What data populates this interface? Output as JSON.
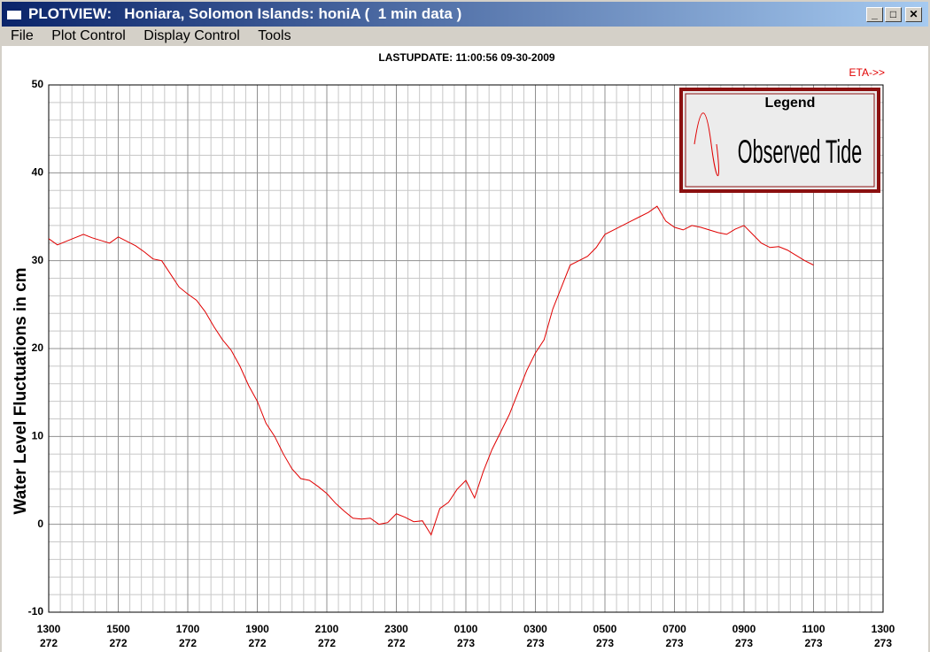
{
  "window": {
    "title": "PLOTVIEW:   Honiara, Solomon Islands: honiA (  1 min data )",
    "menu": [
      "File",
      "Plot Control",
      "Display Control",
      "Tools"
    ]
  },
  "chart_data": {
    "type": "line",
    "title": "LASTUPDATE: 11:00:56  09-30-2009",
    "annotation": "ETA->>",
    "y_label": "Water Level Fluctuations in cm",
    "legend_title": "Legend",
    "legend": "upper right",
    "grid": true,
    "x": [
      13,
      13.25,
      13.5,
      13.75,
      14,
      14.25,
      14.5,
      14.75,
      15,
      15.25,
      15.5,
      15.75,
      16,
      16.25,
      16.5,
      16.75,
      17,
      17.25,
      17.5,
      17.75,
      18,
      18.25,
      18.5,
      18.75,
      19,
      19.25,
      19.5,
      19.75,
      20,
      20.25,
      20.5,
      20.75,
      21,
      21.25,
      21.5,
      21.75,
      22,
      22.25,
      22.5,
      22.75,
      23,
      23.25,
      23.5,
      23.75,
      24,
      24.25,
      24.5,
      24.75,
      25,
      25.25,
      25.5,
      25.75,
      26,
      26.25,
      26.5,
      26.75,
      27,
      27.25,
      27.5,
      27.75,
      28,
      28.25,
      28.5,
      28.75,
      29,
      29.25,
      29.5,
      29.75,
      30,
      30.25,
      30.5,
      30.75,
      31,
      31.25,
      31.5,
      31.75,
      32,
      32.25,
      32.5,
      32.75,
      33,
      33.25,
      33.5,
      33.75,
      34,
      34.25,
      34.5,
      34.75,
      35
    ],
    "series": [
      {
        "name": "Observed Tide",
        "color": "#e00000",
        "values": [
          32.5,
          31.8,
          32.2,
          32.6,
          33.0,
          32.6,
          32.3,
          32.0,
          32.7,
          32.2,
          31.7,
          31.0,
          30.2,
          30.0,
          28.5,
          27.0,
          26.2,
          25.5,
          24.2,
          22.5,
          21.0,
          19.8,
          18.0,
          15.8,
          14.0,
          11.5,
          10.0,
          8.0,
          6.3,
          5.2,
          5.0,
          4.3,
          3.5,
          2.4,
          1.5,
          0.7,
          0.6,
          0.7,
          0.0,
          0.2,
          1.2,
          0.8,
          0.3,
          0.4,
          -1.2,
          1.8,
          2.5,
          4.0,
          5.0,
          3.0,
          6.0,
          8.5,
          10.5,
          12.5,
          15.0,
          17.5,
          19.5,
          21.0,
          24.5,
          27.0,
          29.5,
          30.0,
          30.5,
          31.5,
          33.0,
          33.5,
          34.0,
          34.5,
          35.0,
          35.5,
          36.2,
          34.5,
          33.8,
          33.5,
          34.0,
          33.8,
          33.5,
          33.2,
          33.0,
          33.6,
          34.0,
          33.0,
          32.0,
          31.5,
          31.6,
          31.2,
          30.6,
          30.0,
          29.5
        ]
      }
    ],
    "xlim": [
      13,
      37
    ],
    "xticks": [
      {
        "value": 13,
        "label": "1300"
      },
      {
        "value": 15,
        "label": "1500"
      },
      {
        "value": 17,
        "label": "1700"
      },
      {
        "value": 19,
        "label": "1900"
      },
      {
        "value": 21,
        "label": "2100"
      },
      {
        "value": 23,
        "label": "2300"
      },
      {
        "value": 25,
        "label": "0100"
      },
      {
        "value": 27,
        "label": "0300"
      },
      {
        "value": 29,
        "label": "0500"
      },
      {
        "value": 31,
        "label": "0700"
      },
      {
        "value": 33,
        "label": "0900"
      },
      {
        "value": 35,
        "label": "1100"
      },
      {
        "value": 37,
        "label": "1300"
      }
    ],
    "xtick_days": [
      "272",
      "272",
      "272",
      "272",
      "272",
      "272",
      "273",
      "273",
      "273",
      "273",
      "273",
      "273",
      "273"
    ],
    "ylim": [
      -10,
      50
    ],
    "yticks": [
      -10,
      0,
      10,
      20,
      30,
      40,
      50
    ]
  }
}
